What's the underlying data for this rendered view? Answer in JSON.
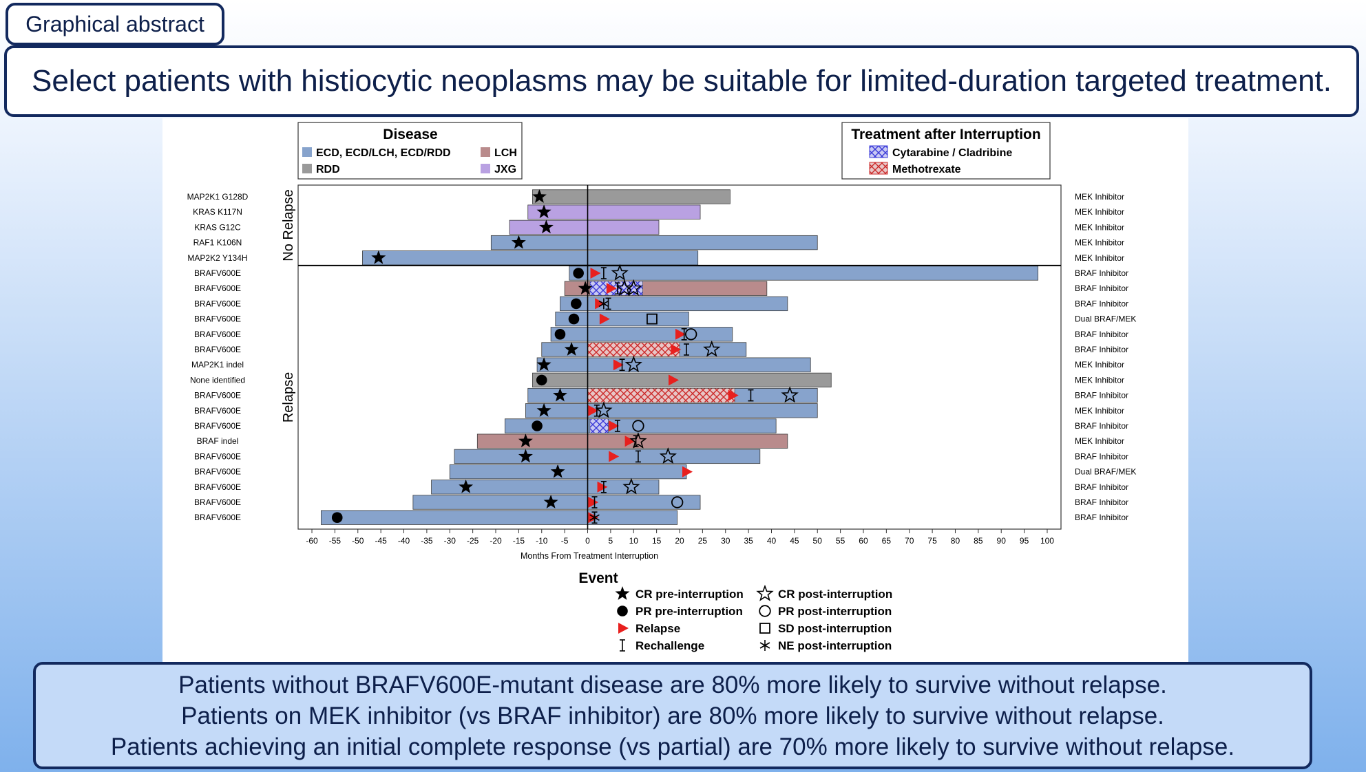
{
  "header": {
    "tab_label": "Graphical abstract",
    "headline": "Select patients with histiocytic neoplasms may be suitable for limited-duration targeted treatment."
  },
  "findings": [
    "Patients without BRAFV600E-mutant disease are 80% more likely to survive without relapse.",
    "Patients on MEK inhibitor (vs BRAF inhibitor) are 80% more likely to survive without relapse.",
    "Patients achieving an initial complete response (vs partial) are 70% more likely to survive without relapse."
  ],
  "colors": {
    "ECD": "#87a3cc",
    "LCH": "#b98b8c",
    "RDD": "#9a9a9a",
    "JXG": "#b9a1e2",
    "relapse": "#e8201e",
    "cytarabine": "#3a3ad8",
    "methotrexate": "#cc2a2a",
    "frame": "#12295e"
  },
  "chart_data": {
    "type": "swimmer",
    "xlabel": "Months From Treatment Interruption",
    "xlim": [
      -63,
      103
    ],
    "xticks": [
      -60,
      -55,
      -50,
      -45,
      -40,
      -35,
      -30,
      -25,
      -20,
      -15,
      -10,
      -5,
      0,
      5,
      10,
      15,
      20,
      25,
      30,
      35,
      40,
      45,
      50,
      55,
      60,
      65,
      70,
      75,
      80,
      85,
      90,
      95,
      100
    ],
    "group_labels": [
      "No Relapse",
      "Relapse"
    ],
    "legend_disease": {
      "title": "Disease",
      "items": [
        {
          "label": "ECD, ECD/LCH, ECD/RDD",
          "color": "#87a3cc"
        },
        {
          "label": "LCH",
          "color": "#b98b8c"
        },
        {
          "label": "RDD",
          "color": "#9a9a9a"
        },
        {
          "label": "JXG",
          "color": "#b9a1e2"
        }
      ]
    },
    "legend_treatment": {
      "title": "Treatment after Interruption",
      "items": [
        {
          "label": "Cytarabine / Cladribine",
          "color": "#3a3ad8"
        },
        {
          "label": "Methotrexate",
          "color": "#cc2a2a"
        }
      ]
    },
    "legend_event": {
      "title": "Event",
      "items": [
        {
          "label": "CR pre-interruption",
          "marker": "star-filled"
        },
        {
          "label": "CR post-interruption",
          "marker": "star-open"
        },
        {
          "label": "PR pre-interruption",
          "marker": "circle-filled"
        },
        {
          "label": "PR post-interruption",
          "marker": "circle-open"
        },
        {
          "label": "Relapse",
          "marker": "triangle"
        },
        {
          "label": "SD post-interruption",
          "marker": "square-open"
        },
        {
          "label": "Rechallenge",
          "marker": "ibeam"
        },
        {
          "label": "NE post-interruption",
          "marker": "asterisk"
        }
      ]
    },
    "patients": [
      {
        "label": "MAP2K1 G128D",
        "drug": "MEK Inhibitor",
        "group": "No Relapse",
        "disease": "RDD",
        "start": -12,
        "end": 31,
        "events": [
          {
            "type": "cr_pre",
            "x": -10.5
          }
        ]
      },
      {
        "label": "KRAS K117N",
        "drug": "MEK Inhibitor",
        "group": "No Relapse",
        "disease": "JXG",
        "start": -13,
        "end": 24.5,
        "events": [
          {
            "type": "cr_pre",
            "x": -9.5
          }
        ]
      },
      {
        "label": "KRAS G12C",
        "drug": "MEK Inhibitor",
        "group": "No Relapse",
        "disease": "JXG",
        "start": -17,
        "end": 15.5,
        "events": [
          {
            "type": "cr_pre",
            "x": -9
          }
        ]
      },
      {
        "label": "RAF1 K106N",
        "drug": "MEK Inhibitor",
        "group": "No Relapse",
        "disease": "ECD",
        "start": -21,
        "end": 50,
        "events": [
          {
            "type": "cr_pre",
            "x": -15
          }
        ]
      },
      {
        "label": "MAP2K2 Y134H",
        "drug": "MEK Inhibitor",
        "group": "No Relapse",
        "disease": "ECD",
        "start": -49,
        "end": 24,
        "events": [
          {
            "type": "cr_pre",
            "x": -45.5
          }
        ]
      },
      {
        "label": "BRAFV600E",
        "drug": "BRAF Inhibitor",
        "group": "Relapse",
        "disease": "ECD",
        "start": -4,
        "end": 98,
        "events": [
          {
            "type": "pr_pre",
            "x": -2
          },
          {
            "type": "relapse",
            "x": 1.5
          },
          {
            "type": "rechallenge",
            "x": 3.5
          },
          {
            "type": "cr_post",
            "x": 7
          }
        ]
      },
      {
        "label": "BRAFV600E",
        "drug": "BRAF Inhibitor",
        "group": "Relapse",
        "disease": "LCH",
        "start": -5,
        "end": 39,
        "treatment": {
          "type": "cytarabine",
          "start": 0.5,
          "end": 12
        },
        "events": [
          {
            "type": "cr_pre",
            "x": -0.5
          },
          {
            "type": "relapse",
            "x": 5
          },
          {
            "type": "rechallenge",
            "x": 6.5
          },
          {
            "type": "cr_post",
            "x": 8
          },
          {
            "type": "cr_post",
            "x": 10
          }
        ]
      },
      {
        "label": "BRAFV600E",
        "drug": "BRAF Inhibitor",
        "group": "Relapse",
        "disease": "ECD",
        "start": -6,
        "end": 43.5,
        "events": [
          {
            "type": "pr_pre",
            "x": -2.5
          },
          {
            "type": "relapse",
            "x": 2.5
          },
          {
            "type": "ne_post",
            "x": 3.5
          },
          {
            "type": "rechallenge",
            "x": 4.5
          }
        ]
      },
      {
        "label": "BRAFV600E",
        "drug": "Dual BRAF/MEK",
        "group": "Relapse",
        "disease": "ECD",
        "start": -7,
        "end": 22,
        "events": [
          {
            "type": "pr_pre",
            "x": -3
          },
          {
            "type": "relapse",
            "x": 3.5
          },
          {
            "type": "sd_post",
            "x": 14
          }
        ]
      },
      {
        "label": "BRAFV600E",
        "drug": "BRAF Inhibitor",
        "group": "Relapse",
        "disease": "ECD",
        "start": -8,
        "end": 31.5,
        "events": [
          {
            "type": "pr_pre",
            "x": -6
          },
          {
            "type": "relapse",
            "x": 20
          },
          {
            "type": "rechallenge",
            "x": 21
          },
          {
            "type": "pr_post",
            "x": 22.5
          }
        ]
      },
      {
        "label": "BRAFV600E",
        "drug": "BRAF Inhibitor",
        "group": "Relapse",
        "disease": "ECD",
        "start": -10,
        "end": 34.5,
        "treatment": {
          "type": "methotrexate",
          "start": 0,
          "end": 20
        },
        "events": [
          {
            "type": "cr_pre",
            "x": -3.5
          },
          {
            "type": "relapse",
            "x": 19
          },
          {
            "type": "rechallenge",
            "x": 21.5
          },
          {
            "type": "cr_post",
            "x": 27
          }
        ]
      },
      {
        "label": "MAP2K1 indel",
        "drug": "MEK Inhibitor",
        "group": "Relapse",
        "disease": "ECD",
        "start": -11,
        "end": 48.5,
        "events": [
          {
            "type": "cr_pre",
            "x": -9.5
          },
          {
            "type": "relapse",
            "x": 6.5
          },
          {
            "type": "rechallenge",
            "x": 7.5
          },
          {
            "type": "cr_post",
            "x": 10
          }
        ]
      },
      {
        "label": "None identified",
        "drug": "MEK Inhibitor",
        "group": "Relapse",
        "disease": "RDD",
        "start": -12,
        "end": 53,
        "events": [
          {
            "type": "pr_pre",
            "x": -10
          },
          {
            "type": "relapse",
            "x": 18.5
          }
        ]
      },
      {
        "label": "BRAFV600E",
        "drug": "BRAF Inhibitor",
        "group": "Relapse",
        "disease": "ECD",
        "start": -13,
        "end": 50,
        "treatment": {
          "type": "methotrexate",
          "start": 0,
          "end": 32
        },
        "events": [
          {
            "type": "cr_pre",
            "x": -6
          },
          {
            "type": "relapse",
            "x": 31.5
          },
          {
            "type": "rechallenge",
            "x": 35.5
          },
          {
            "type": "cr_post",
            "x": 44
          }
        ]
      },
      {
        "label": "BRAFV600E",
        "drug": "MEK Inhibitor",
        "group": "Relapse",
        "disease": "ECD",
        "start": -13.5,
        "end": 50,
        "events": [
          {
            "type": "cr_pre",
            "x": -9.5
          },
          {
            "type": "relapse",
            "x": 1
          },
          {
            "type": "rechallenge",
            "x": 2
          },
          {
            "type": "cr_post",
            "x": 3.5
          }
        ]
      },
      {
        "label": "BRAFV600E",
        "drug": "BRAF Inhibitor",
        "group": "Relapse",
        "disease": "ECD",
        "start": -18,
        "end": 41,
        "treatment": {
          "type": "cytarabine",
          "start": 0.5,
          "end": 4.5
        },
        "events": [
          {
            "type": "pr_pre",
            "x": -11
          },
          {
            "type": "relapse",
            "x": 5.5
          },
          {
            "type": "rechallenge",
            "x": 6.5
          },
          {
            "type": "pr_post",
            "x": 11
          }
        ]
      },
      {
        "label": "BRAF indel",
        "drug": "MEK Inhibitor",
        "group": "Relapse",
        "disease": "LCH",
        "start": -24,
        "end": 43.5,
        "events": [
          {
            "type": "cr_pre",
            "x": -13.5
          },
          {
            "type": "relapse",
            "x": 9
          },
          {
            "type": "rechallenge",
            "x": 10.5
          },
          {
            "type": "cr_post",
            "x": 11
          }
        ]
      },
      {
        "label": "BRAFV600E",
        "drug": "BRAF Inhibitor",
        "group": "Relapse",
        "disease": "ECD",
        "start": -29,
        "end": 37.5,
        "events": [
          {
            "type": "cr_pre",
            "x": -13.5
          },
          {
            "type": "relapse",
            "x": 5.5
          },
          {
            "type": "rechallenge",
            "x": 11
          },
          {
            "type": "cr_post",
            "x": 17.5
          }
        ]
      },
      {
        "label": "BRAFV600E",
        "drug": "Dual BRAF/MEK",
        "group": "Relapse",
        "disease": "ECD",
        "start": -30,
        "end": 21.5,
        "events": [
          {
            "type": "cr_pre",
            "x": -6.5
          },
          {
            "type": "relapse",
            "x": 21.5
          }
        ]
      },
      {
        "label": "BRAFV600E",
        "drug": "BRAF Inhibitor",
        "group": "Relapse",
        "disease": "ECD",
        "start": -34,
        "end": 15.5,
        "events": [
          {
            "type": "cr_pre",
            "x": -26.5
          },
          {
            "type": "relapse",
            "x": 3
          },
          {
            "type": "rechallenge",
            "x": 3.5
          },
          {
            "type": "cr_post",
            "x": 9.5
          }
        ]
      },
      {
        "label": "BRAFV600E",
        "drug": "BRAF Inhibitor",
        "group": "Relapse",
        "disease": "ECD",
        "start": -38,
        "end": 24.5,
        "events": [
          {
            "type": "cr_pre",
            "x": -8
          },
          {
            "type": "relapse",
            "x": 1
          },
          {
            "type": "rechallenge",
            "x": 1.5
          },
          {
            "type": "pr_post",
            "x": 19.5
          }
        ]
      },
      {
        "label": "BRAFV600E",
        "drug": "BRAF Inhibitor",
        "group": "Relapse",
        "disease": "ECD",
        "start": -58,
        "end": 19.5,
        "events": [
          {
            "type": "pr_pre",
            "x": -54.5
          },
          {
            "type": "relapse",
            "x": 1
          },
          {
            "type": "ne_post",
            "x": 1.5
          },
          {
            "type": "rechallenge",
            "x": 1.5
          }
        ]
      }
    ]
  }
}
